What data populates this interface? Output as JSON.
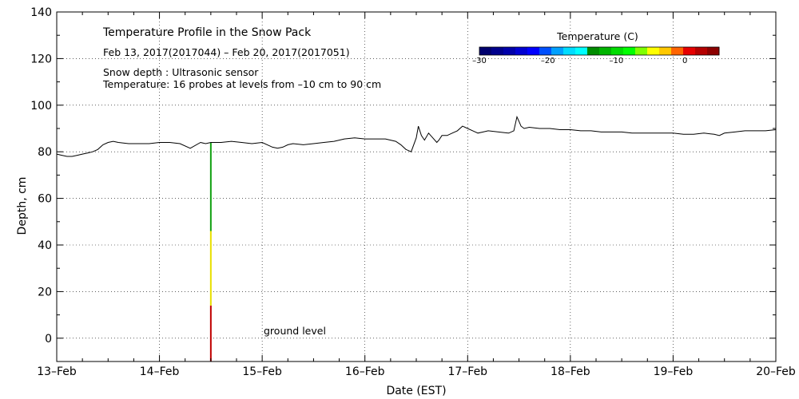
{
  "chart_data": {
    "type": "line",
    "title": "Temperature Profile in the Snow Pack",
    "subtitle": "Feb 13, 2017(2017044) – Feb 20, 2017(2017051)",
    "notes": [
      "Snow depth : Ultrasonic sensor",
      "Temperature: 16 probes at levels from –10 cm to 90 cm"
    ],
    "xlabel": "Date (EST)",
    "ylabel": "Depth, cm",
    "x_ticks": [
      "13–Feb",
      "14–Feb",
      "15–Feb",
      "16–Feb",
      "17–Feb",
      "18–Feb",
      "19–Feb",
      "20–Feb"
    ],
    "xlim": [
      0,
      7
    ],
    "ylim": [
      -10,
      140
    ],
    "y_ticks": [
      0,
      20,
      40,
      60,
      80,
      100,
      120,
      140
    ],
    "grid": true,
    "annotation": {
      "text": "ground level",
      "x": 2.0,
      "y": 3
    },
    "series": [
      {
        "color": "#000000",
        "x": [
          0.0,
          0.05,
          0.1,
          0.15,
          0.2,
          0.25,
          0.3,
          0.35,
          0.4,
          0.45,
          0.5,
          0.55,
          0.6,
          0.7,
          0.8,
          0.9,
          1.0,
          1.1,
          1.2,
          1.3,
          1.4,
          1.45,
          1.5,
          1.6,
          1.7,
          1.8,
          1.9,
          2.0,
          2.1,
          2.15,
          2.2,
          2.25,
          2.3,
          2.4,
          2.5,
          2.6,
          2.7,
          2.8,
          2.9,
          3.0,
          3.1,
          3.2,
          3.3,
          3.35,
          3.4,
          3.45,
          3.5,
          3.52,
          3.55,
          3.58,
          3.62,
          3.66,
          3.7,
          3.72,
          3.75,
          3.8,
          3.85,
          3.9,
          3.95,
          4.0,
          4.05,
          4.1,
          4.15,
          4.2,
          4.3,
          4.4,
          4.45,
          4.48,
          4.5,
          4.52,
          4.55,
          4.6,
          4.7,
          4.8,
          4.9,
          5.0,
          5.1,
          5.2,
          5.3,
          5.4,
          5.5,
          5.6,
          5.7,
          5.8,
          5.9,
          6.0,
          6.1,
          6.2,
          6.3,
          6.4,
          6.45,
          6.5,
          6.6,
          6.7,
          6.8,
          6.9,
          7.0
        ],
        "values": [
          79,
          78.5,
          78,
          78,
          78.5,
          79,
          79.5,
          80,
          81,
          83,
          84,
          84.5,
          84,
          83.5,
          83.5,
          83.5,
          84,
          84,
          83.5,
          81.5,
          84,
          83.5,
          84,
          84,
          84.5,
          84,
          83.5,
          84,
          82,
          81.5,
          82,
          83,
          83.5,
          83,
          83.5,
          84,
          84.5,
          85.5,
          86,
          85.5,
          85.5,
          85.5,
          84.5,
          83,
          81,
          80,
          86,
          91,
          87,
          85,
          88,
          86,
          84,
          85,
          87,
          87,
          88,
          89,
          91,
          90,
          89,
          88,
          88.5,
          89,
          88.5,
          88,
          89,
          95,
          93,
          91,
          90,
          90.5,
          90,
          90,
          89.5,
          89.5,
          89,
          89,
          88.5,
          88.5,
          88.5,
          88,
          88,
          88,
          88,
          88,
          87.5,
          87.5,
          88,
          87.5,
          87,
          88,
          88.5,
          89,
          89,
          89,
          89.5
        ]
      }
    ],
    "probe_column": {
      "x": 1.5,
      "segments": [
        {
          "from": -10,
          "to": 14,
          "color": "#c00000"
        },
        {
          "from": 14,
          "to": 46,
          "color": "#e8e000"
        },
        {
          "from": 46,
          "to": 84,
          "color": "#11a011"
        }
      ]
    },
    "colorbar": {
      "title": "Temperature (C)",
      "range": [
        -30,
        5
      ],
      "ticks": [
        -30,
        -20,
        -10,
        0
      ],
      "colors": [
        "#00006e",
        "#00008c",
        "#0000aa",
        "#0000d2",
        "#0000ff",
        "#0050ff",
        "#00a0ff",
        "#00dcff",
        "#00ffff",
        "#008c00",
        "#00b400",
        "#00dc00",
        "#00ff00",
        "#80ff00",
        "#ffff00",
        "#ffc800",
        "#ff6400",
        "#e60000",
        "#b40000",
        "#8c0000"
      ]
    }
  }
}
